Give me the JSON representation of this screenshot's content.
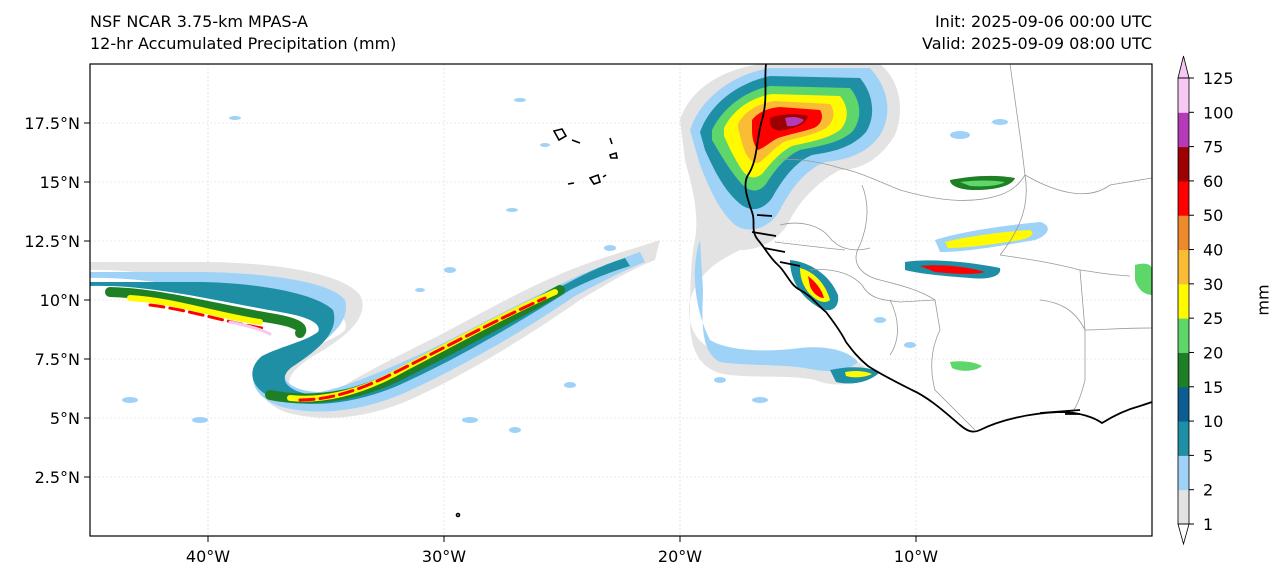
{
  "header": {
    "left_line1": "NSF NCAR 3.75-km MPAS-A",
    "left_line2": "12-hr Accumulated Precipitation (mm)",
    "right_line1": "Init: 2025-09-06 00:00 UTC",
    "right_line2": "Valid: 2025-09-09 08:00 UTC"
  },
  "map": {
    "lon_range": [
      -45,
      0
    ],
    "lat_range": [
      0,
      20
    ],
    "lon_ticks": [
      {
        "value": -40,
        "label": "40°W"
      },
      {
        "value": -30,
        "label": "30°W"
      },
      {
        "value": -20,
        "label": "20°W"
      },
      {
        "value": -10,
        "label": "10°W"
      }
    ],
    "lat_ticks": [
      {
        "value": 17.5,
        "label": "17.5°N"
      },
      {
        "value": 15,
        "label": "15°N"
      },
      {
        "value": 12.5,
        "label": "12.5°N"
      },
      {
        "value": 10,
        "label": "10°N"
      },
      {
        "value": 7.5,
        "label": "7.5°N"
      },
      {
        "value": 5,
        "label": "5°N"
      },
      {
        "value": 2.5,
        "label": "2.5°N"
      }
    ],
    "gridlines": true
  },
  "colorbar": {
    "label": "mm",
    "levels": [
      "1",
      "2",
      "5",
      "10",
      "15",
      "20",
      "25",
      "30",
      "40",
      "50",
      "60",
      "75",
      "100",
      "125"
    ],
    "colors": [
      "#e3e3e3",
      "#9fd2f7",
      "#1f8fa5",
      "#0a5e90",
      "#1e7f24",
      "#5ed66a",
      "#fffa00",
      "#f9bc34",
      "#ee8a2c",
      "#ff0000",
      "#9c0000",
      "#b43ab8",
      "#f8c8f4"
    ]
  }
}
